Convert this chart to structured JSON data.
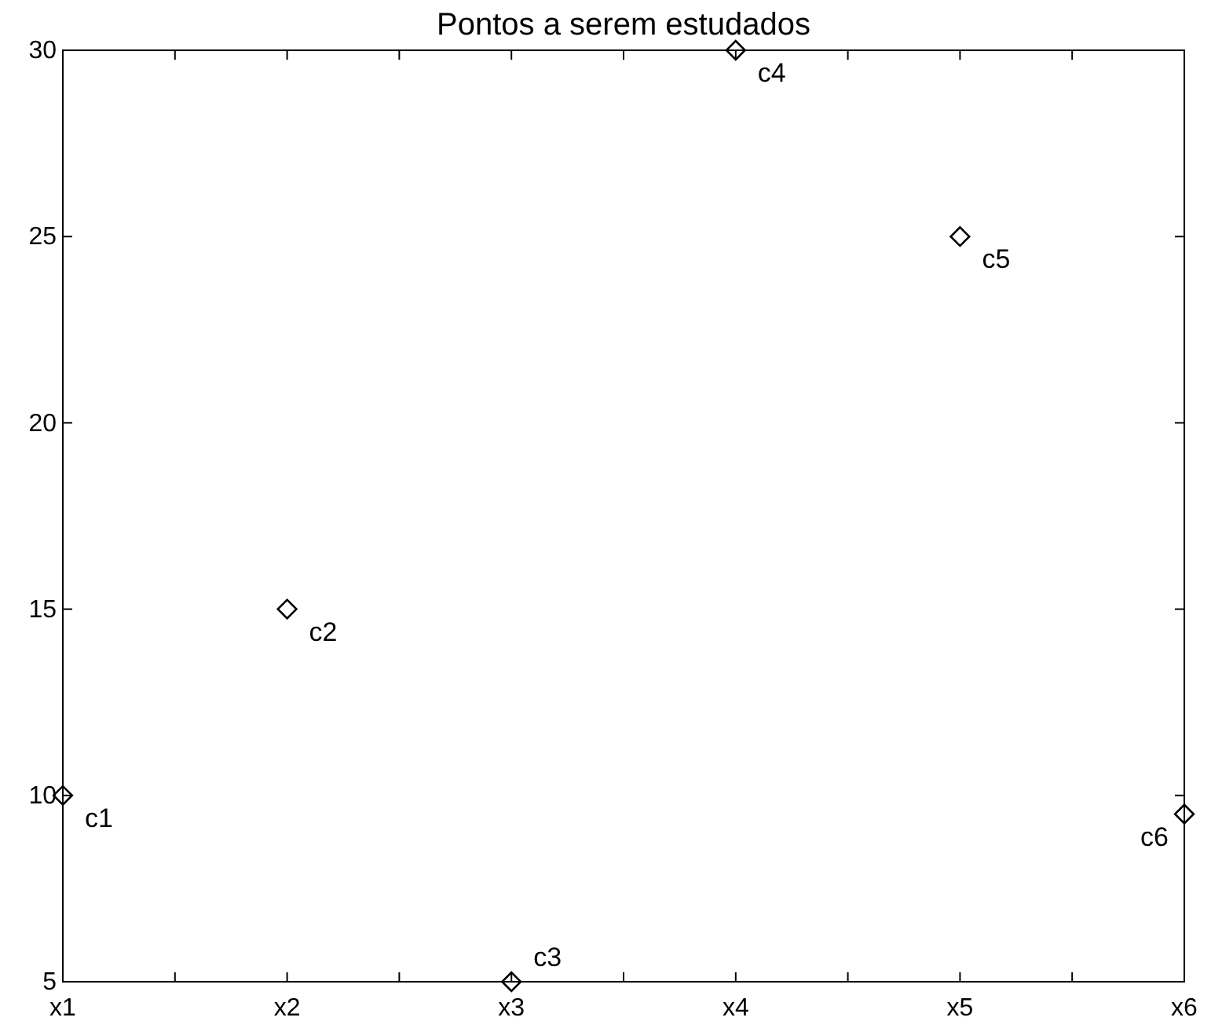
{
  "chart_data": {
    "type": "scatter",
    "title": "Pontos a serem estudados",
    "categories": [
      "x1",
      "x2",
      "x3",
      "x4",
      "x5",
      "x6"
    ],
    "values": [
      10,
      15,
      5,
      30,
      25,
      9.5
    ],
    "color": "#000000",
    "marker": "diamond",
    "grid": false,
    "ylim": [
      5,
      30
    ],
    "yticks": [
      5,
      10,
      15,
      20,
      25,
      30
    ],
    "annotations": [
      {
        "text": "c1",
        "x": "x1",
        "y": 10
      },
      {
        "text": "c2",
        "x": "x2",
        "y": 15
      },
      {
        "text": "c3",
        "x": "x3",
        "y": 5
      },
      {
        "text": "c4",
        "x": "x4",
        "y": 30
      },
      {
        "text": "c5",
        "x": "x5",
        "y": 25
      },
      {
        "text": "c6",
        "x": "x6",
        "y": 9.5
      }
    ]
  }
}
